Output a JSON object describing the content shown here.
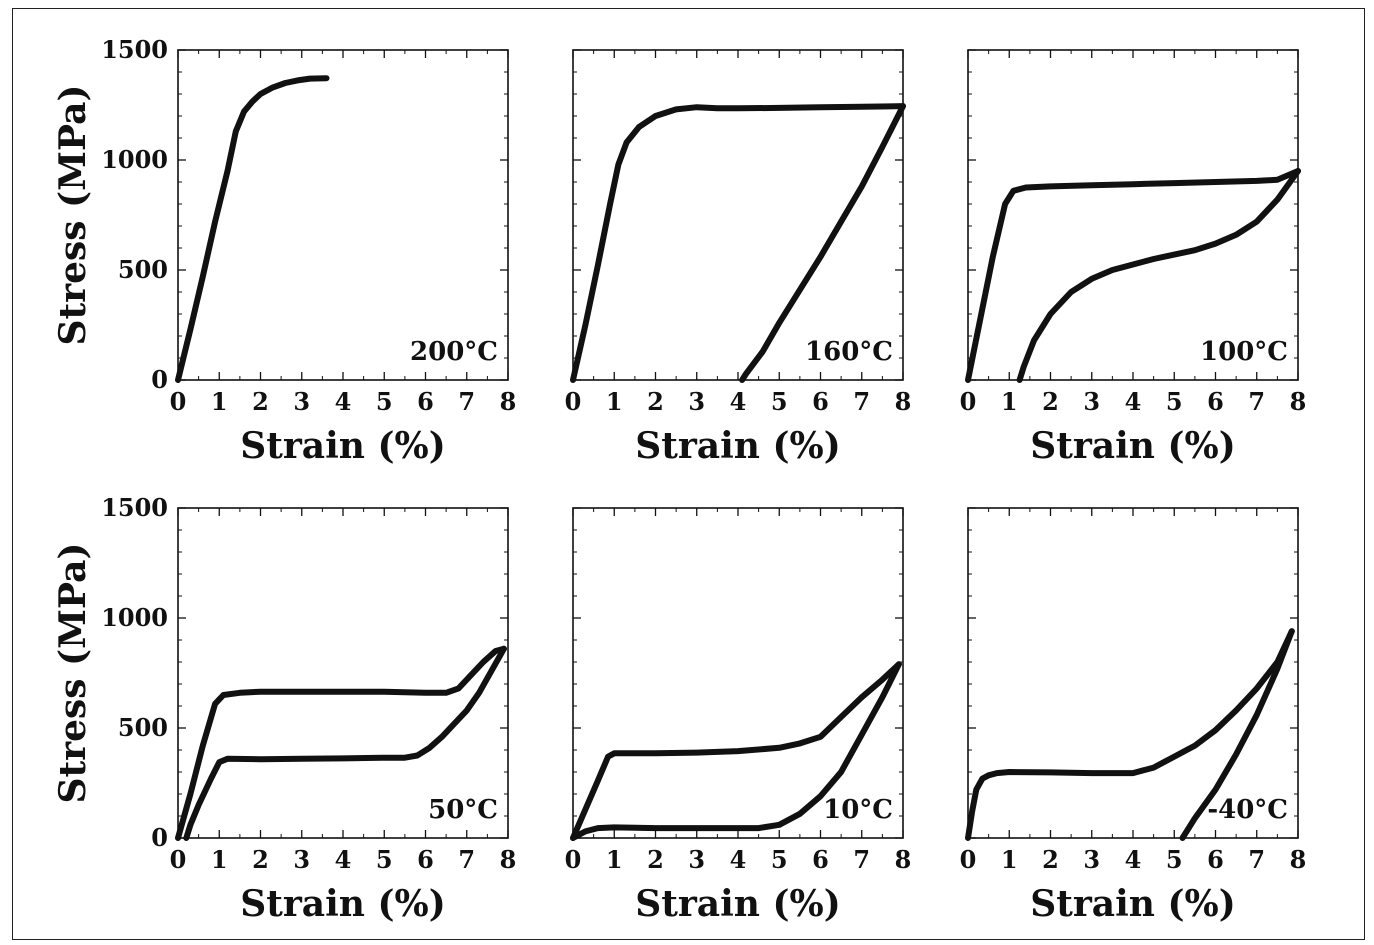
{
  "chart_data": [
    {
      "type": "line",
      "xlabel": "Strain (%)",
      "ylabel": "Stress (MPa)",
      "annotation": "200°C",
      "xlim": [
        0,
        8
      ],
      "ylim": [
        0,
        1500
      ],
      "xticks": [
        "0",
        "1",
        "2",
        "3",
        "4",
        "5",
        "6",
        "7",
        "8"
      ],
      "yticks": [
        "0",
        "500",
        "1000",
        "1500"
      ],
      "series": [
        {
          "x": [
            0,
            0.3,
            0.6,
            0.9,
            1.2,
            1.4,
            1.6,
            1.8,
            2.0,
            2.3,
            2.6,
            2.9,
            3.2,
            3.6
          ],
          "y": [
            0,
            230,
            470,
            720,
            950,
            1130,
            1220,
            1265,
            1300,
            1330,
            1350,
            1362,
            1370,
            1372
          ]
        }
      ]
    },
    {
      "type": "line",
      "xlabel": "Strain (%)",
      "ylabel": "",
      "annotation": "160°C",
      "xlim": [
        0,
        8
      ],
      "ylim": [
        0,
        1500
      ],
      "xticks": [
        "0",
        "1",
        "2",
        "3",
        "4",
        "5",
        "6",
        "7",
        "8"
      ],
      "yticks": [
        "0",
        "500",
        "1000",
        "1500"
      ],
      "series": [
        {
          "x": [
            0,
            0.3,
            0.6,
            0.9,
            1.1,
            1.3,
            1.6,
            2.0,
            2.5,
            3.0,
            3.5,
            4.0,
            5.0,
            6.0,
            7.0,
            8.0
          ],
          "y": [
            0,
            250,
            520,
            800,
            980,
            1080,
            1150,
            1200,
            1230,
            1240,
            1235,
            1235,
            1237,
            1240,
            1242,
            1245
          ]
        },
        {
          "x": [
            8.0,
            7.5,
            7.0,
            6.5,
            6.0,
            5.5,
            5.0,
            4.6,
            4.2,
            4.1
          ],
          "y": [
            1245,
            1060,
            880,
            720,
            560,
            410,
            260,
            130,
            30,
            0
          ]
        }
      ]
    },
    {
      "type": "line",
      "xlabel": "Strain (%)",
      "ylabel": "",
      "annotation": "100°C",
      "xlim": [
        0,
        8
      ],
      "ylim": [
        0,
        1500
      ],
      "xticks": [
        "0",
        "1",
        "2",
        "3",
        "4",
        "5",
        "6",
        "7",
        "8"
      ],
      "yticks": [
        "0",
        "500",
        "1000",
        "1500"
      ],
      "series": [
        {
          "x": [
            0,
            0.3,
            0.6,
            0.9,
            1.1,
            1.4,
            2.0,
            3.0,
            4.0,
            5.0,
            6.0,
            7.0,
            7.5,
            8.0
          ],
          "y": [
            0,
            280,
            560,
            800,
            860,
            875,
            880,
            885,
            890,
            895,
            900,
            905,
            910,
            950
          ]
        },
        {
          "x": [
            8.0,
            7.5,
            7.0,
            6.5,
            6.0,
            5.5,
            5.0,
            4.5,
            4.0,
            3.5,
            3.0,
            2.5,
            2.0,
            1.6,
            1.35,
            1.25
          ],
          "y": [
            950,
            820,
            720,
            660,
            620,
            590,
            570,
            550,
            525,
            500,
            460,
            400,
            300,
            180,
            60,
            0
          ]
        }
      ]
    },
    {
      "type": "line",
      "xlabel": "Strain (%)",
      "ylabel": "Stress (MPa)",
      "annotation": "50°C",
      "xlim": [
        0,
        8
      ],
      "ylim": [
        0,
        1500
      ],
      "xticks": [
        "0",
        "1",
        "2",
        "3",
        "4",
        "5",
        "6",
        "7",
        "8"
      ],
      "yticks": [
        "0",
        "500",
        "1000",
        "1500"
      ],
      "series": [
        {
          "x": [
            0,
            0.3,
            0.6,
            0.9,
            1.1,
            1.5,
            2.0,
            3.0,
            4.0,
            5.0,
            6.0,
            6.5,
            6.8,
            7.1,
            7.4,
            7.7,
            7.9
          ],
          "y": [
            0,
            200,
            420,
            610,
            650,
            660,
            665,
            665,
            665,
            665,
            660,
            660,
            680,
            740,
            800,
            850,
            860
          ]
        },
        {
          "x": [
            7.9,
            7.6,
            7.3,
            7.0,
            6.7,
            6.4,
            6.1,
            5.8,
            5.5,
            5.0,
            4.0,
            3.0,
            2.0,
            1.2,
            1.0,
            0.8,
            0.5,
            0.3,
            0.2
          ],
          "y": [
            860,
            760,
            660,
            580,
            520,
            460,
            410,
            375,
            365,
            365,
            362,
            360,
            358,
            360,
            345,
            270,
            150,
            60,
            0
          ]
        }
      ]
    },
    {
      "type": "line",
      "xlabel": "Strain (%)",
      "ylabel": "",
      "annotation": "10°C",
      "xlim": [
        0,
        8
      ],
      "ylim": [
        0,
        1500
      ],
      "xticks": [
        "0",
        "1",
        "2",
        "3",
        "4",
        "5",
        "6",
        "7",
        "8"
      ],
      "yticks": [
        "0",
        "500",
        "1000",
        "1500"
      ],
      "series": [
        {
          "x": [
            0,
            0.3,
            0.6,
            0.85,
            1.0,
            1.5,
            2.0,
            3.0,
            4.0,
            5.0,
            5.5,
            6.0,
            6.5,
            7.0,
            7.5,
            7.9
          ],
          "y": [
            0,
            130,
            260,
            370,
            385,
            385,
            385,
            388,
            395,
            410,
            430,
            460,
            550,
            640,
            720,
            790
          ]
        },
        {
          "x": [
            7.9,
            7.5,
            7.0,
            6.5,
            6.0,
            5.5,
            5.0,
            4.5,
            4.0,
            3.0,
            2.0,
            1.0,
            0.6,
            0.3,
            0.0
          ],
          "y": [
            790,
            640,
            470,
            300,
            190,
            110,
            60,
            45,
            45,
            45,
            45,
            48,
            45,
            30,
            0
          ]
        }
      ]
    },
    {
      "type": "line",
      "xlabel": "Strain (%)",
      "ylabel": "",
      "annotation": "-40°C",
      "xlim": [
        0,
        8
      ],
      "ylim": [
        0,
        1500
      ],
      "xticks": [
        "0",
        "1",
        "2",
        "3",
        "4",
        "5",
        "6",
        "7",
        "8"
      ],
      "yticks": [
        "0",
        "500",
        "1000",
        "1500"
      ],
      "series": [
        {
          "x": [
            0,
            0.1,
            0.2,
            0.35,
            0.5,
            0.7,
            1.0,
            2.0,
            3.0,
            4.0,
            4.5,
            5.0,
            5.5,
            6.0,
            6.5,
            7.0,
            7.5,
            7.85
          ],
          "y": [
            0,
            120,
            220,
            270,
            285,
            295,
            300,
            298,
            295,
            295,
            320,
            370,
            420,
            490,
            580,
            680,
            800,
            940
          ]
        },
        {
          "x": [
            7.85,
            7.5,
            7.0,
            6.5,
            6.0,
            5.5,
            5.2
          ],
          "y": [
            940,
            770,
            560,
            380,
            220,
            90,
            0
          ]
        }
      ]
    }
  ]
}
